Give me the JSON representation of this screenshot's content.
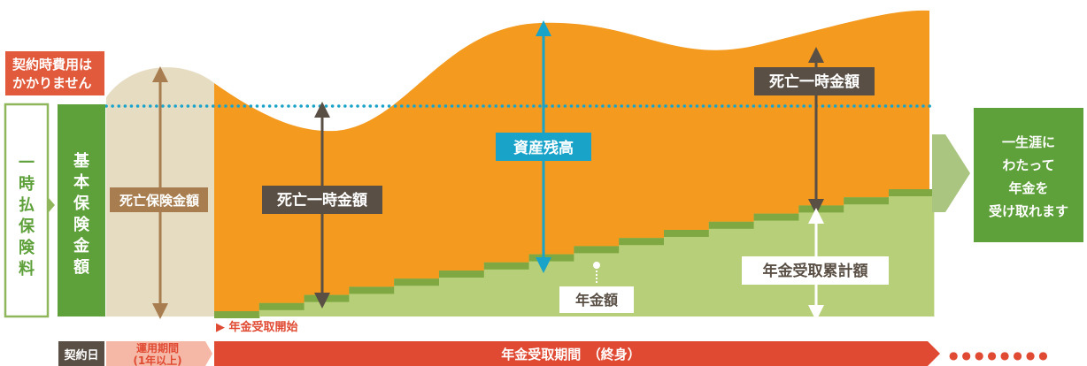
{
  "left_boxes": {
    "no_fee": [
      "契約時費用は",
      "かかりません"
    ],
    "single_premium": [
      "一",
      "時",
      "払",
      "保",
      "険",
      "料"
    ],
    "basic_insured": [
      "基",
      "本",
      "保",
      "険",
      "金",
      "額"
    ]
  },
  "labels": {
    "death_benefit_amount": "死亡保険金額",
    "lump_sum_death_1": "死亡一時金額",
    "lump_sum_death_2": "死亡一時金額",
    "asset_balance": "資産残高",
    "annuity_amount": "年金額",
    "cumulative_annuity": "年金受取累計額"
  },
  "right_box": [
    "一生涯に",
    "わたって",
    "年金を",
    "受け取れます"
  ],
  "timeline": {
    "contract_date": "契約日",
    "operation_period": [
      "運用期間",
      "(1年以上)"
    ],
    "annuity_start": "▶ 年金受取開始",
    "annuity_period": "年金受取期間　（終身）",
    "dots": "●●●●●●●●"
  },
  "colors": {
    "orange": "#f39a1f",
    "light_green": "#b7cf79",
    "dark_green": "#5ea03a",
    "step_top": "#7fa843",
    "beige": "#e6dcc2",
    "teal": "#1aa3c9",
    "brown": "#5a4f45",
    "tan_arrow": "#a87d4f",
    "red_label": "#e25a3c",
    "timeline_red": "#e04a33",
    "gray_arrow": "#aac57f"
  },
  "icons": {
    "arrow_head": "triangle",
    "dotted_line": "teal-dots"
  }
}
